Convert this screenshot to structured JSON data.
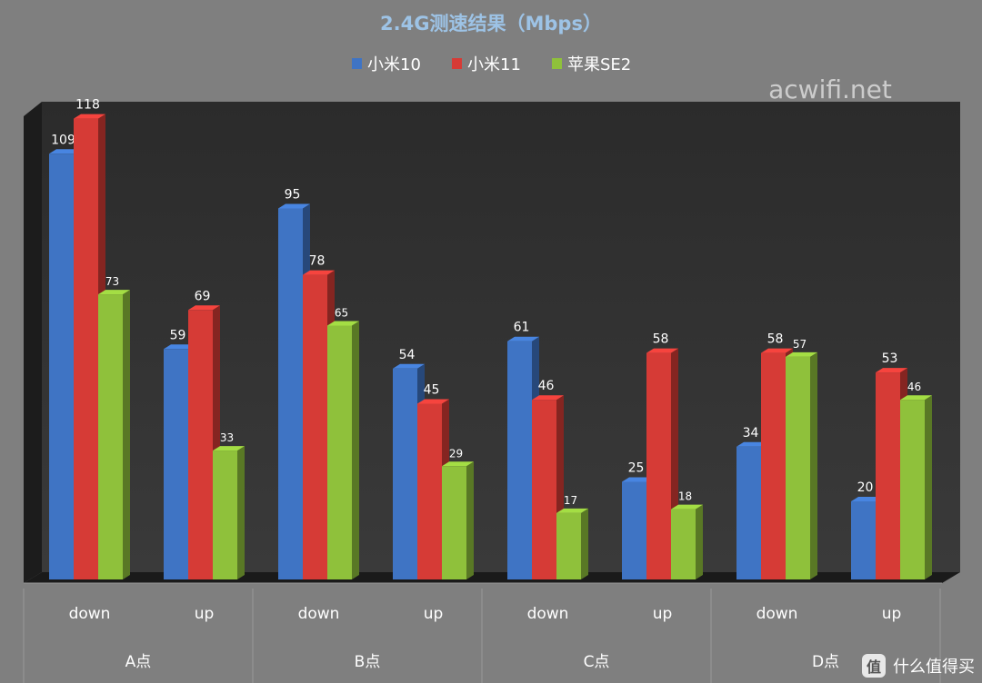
{
  "chart_data": {
    "type": "bar",
    "title": "2.4G测速结果（Mbps）",
    "groups": [
      "A点",
      "B点",
      "C点",
      "D点"
    ],
    "categories": [
      "down",
      "up",
      "down",
      "up",
      "down",
      "up",
      "down",
      "up"
    ],
    "series": [
      {
        "name": "小米10",
        "color": "#3f74c4",
        "values": [
          109,
          59,
          95,
          54,
          61,
          25,
          34,
          20
        ]
      },
      {
        "name": "小米11",
        "color": "#d63b36",
        "values": [
          118,
          69,
          78,
          45,
          46,
          58,
          58,
          53
        ]
      },
      {
        "name": "苹果SE2",
        "color": "#8fc13b",
        "values": [
          73,
          33,
          65,
          29,
          17,
          18,
          57,
          46
        ]
      }
    ],
    "ylim": [
      0,
      125
    ],
    "grid": false,
    "legend": "top-center"
  },
  "watermark": {
    "site": "acwifi.net",
    "brand": "什么值得买",
    "logo_glyph": "值"
  }
}
